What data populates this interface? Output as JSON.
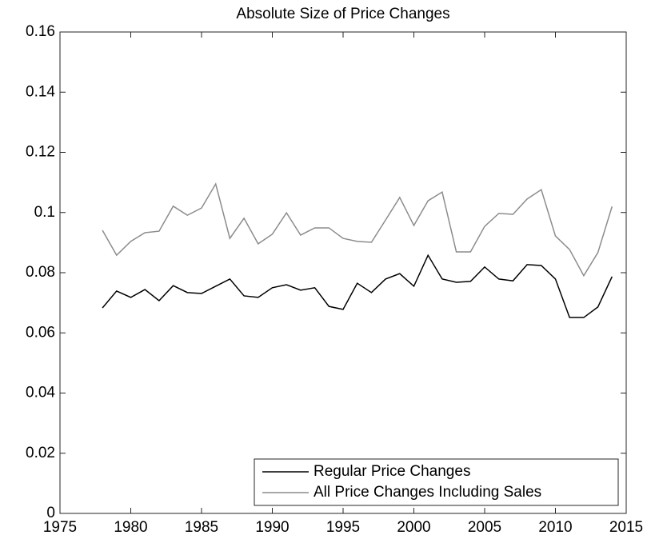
{
  "chart_data": {
    "type": "line",
    "title": "Absolute Size of Price Changes",
    "x": [
      1978,
      1979,
      1980,
      1981,
      1982,
      1983,
      1984,
      1985,
      1986,
      1987,
      1988,
      1989,
      1990,
      1991,
      1992,
      1993,
      1994,
      1995,
      1996,
      1997,
      1998,
      1999,
      2000,
      2001,
      2002,
      2003,
      2004,
      2005,
      2006,
      2007,
      2008,
      2009,
      2010,
      2011,
      2012,
      2013,
      2014
    ],
    "series": [
      {
        "name": "Regular Price Changes",
        "color": "#000000",
        "values": [
          0.0683,
          0.0739,
          0.0718,
          0.0744,
          0.0707,
          0.0757,
          0.0734,
          0.0731,
          0.0755,
          0.0779,
          0.0723,
          0.0718,
          0.075,
          0.076,
          0.0742,
          0.075,
          0.0688,
          0.0678,
          0.0765,
          0.0734,
          0.0779,
          0.0797,
          0.0755,
          0.0858,
          0.0779,
          0.0768,
          0.0771,
          0.0819,
          0.0779,
          0.0773,
          0.0827,
          0.0824,
          0.0779,
          0.0651,
          0.0651,
          0.0686,
          0.0787
        ]
      },
      {
        "name": "All Price Changes Including Sales",
        "color": "#8c8c8c",
        "values": [
          0.0941,
          0.0858,
          0.0904,
          0.0933,
          0.0938,
          0.1021,
          0.0991,
          0.1015,
          0.1095,
          0.0914,
          0.0981,
          0.0896,
          0.0928,
          0.0999,
          0.0925,
          0.0949,
          0.0949,
          0.0914,
          0.0904,
          0.0901,
          0.0975,
          0.105,
          0.0957,
          0.1039,
          0.1068,
          0.0869,
          0.0869,
          0.0954,
          0.0997,
          0.0994,
          0.1045,
          0.1076,
          0.0922,
          0.0877,
          0.079,
          0.0867,
          0.102
        ]
      }
    ],
    "xlim": [
      1975,
      2015
    ],
    "xticks": [
      1975,
      1980,
      1985,
      1990,
      1995,
      2000,
      2005,
      2010,
      2015
    ],
    "ylim": [
      0,
      0.16
    ],
    "yticks": [
      0,
      0.02,
      0.04,
      0.06,
      0.08,
      0.1,
      0.12,
      0.14,
      0.16
    ],
    "legend": "lower right"
  }
}
